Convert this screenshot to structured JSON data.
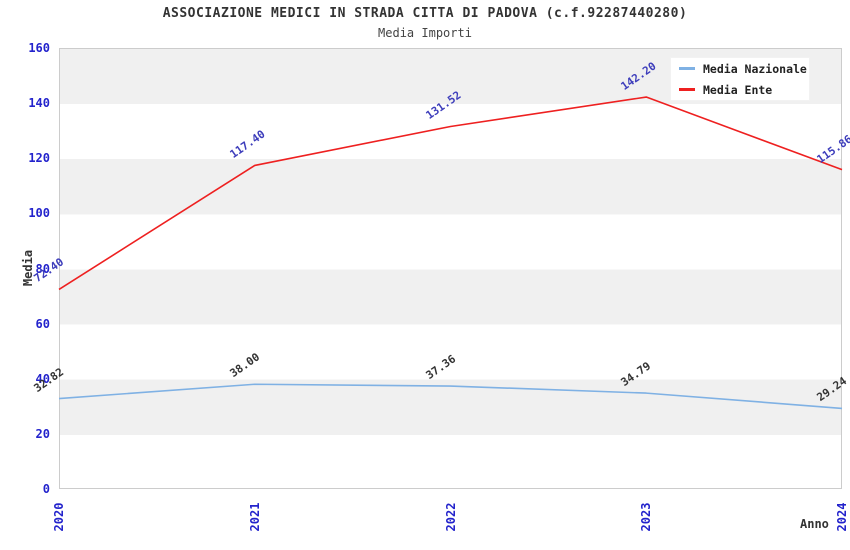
{
  "title": "ASSOCIAZIONE MEDICI IN STRADA CITTA DI PADOVA (c.f.92287440280)",
  "subtitle": "Media Importi",
  "colors": {
    "axis_tick_blue": "#2323cc",
    "plot_band_gray": "#f0f0f0",
    "plot_border": "#cccccc",
    "text_dark": "#333333"
  },
  "chart_data": {
    "type": "line",
    "x": [
      "2020",
      "2021",
      "2022",
      "2023",
      "2024"
    ],
    "xlabel": "Anno",
    "ylabel": "Media",
    "ylim": [
      0,
      160
    ],
    "yticks": [
      0,
      20,
      40,
      60,
      80,
      100,
      120,
      140,
      160
    ],
    "grid": "alternating-horizontal-bands",
    "legend_position": "top-right-inside",
    "series": [
      {
        "name": "Media Nazionale",
        "color": "#7fb1e4",
        "label_color": "#333333",
        "values": [
          32.82,
          38.0,
          37.36,
          34.79,
          29.24
        ],
        "labels": [
          "32.82",
          "38.00",
          "37.36",
          "34.79",
          "29.24"
        ]
      },
      {
        "name": "Media Ente",
        "color": "#ee2020",
        "label_color": "#3d3dbb",
        "values": [
          72.4,
          117.4,
          131.52,
          142.2,
          115.86
        ],
        "labels": [
          "72.40",
          "117.40",
          "131.52",
          "142.20",
          "115.86"
        ]
      }
    ]
  }
}
